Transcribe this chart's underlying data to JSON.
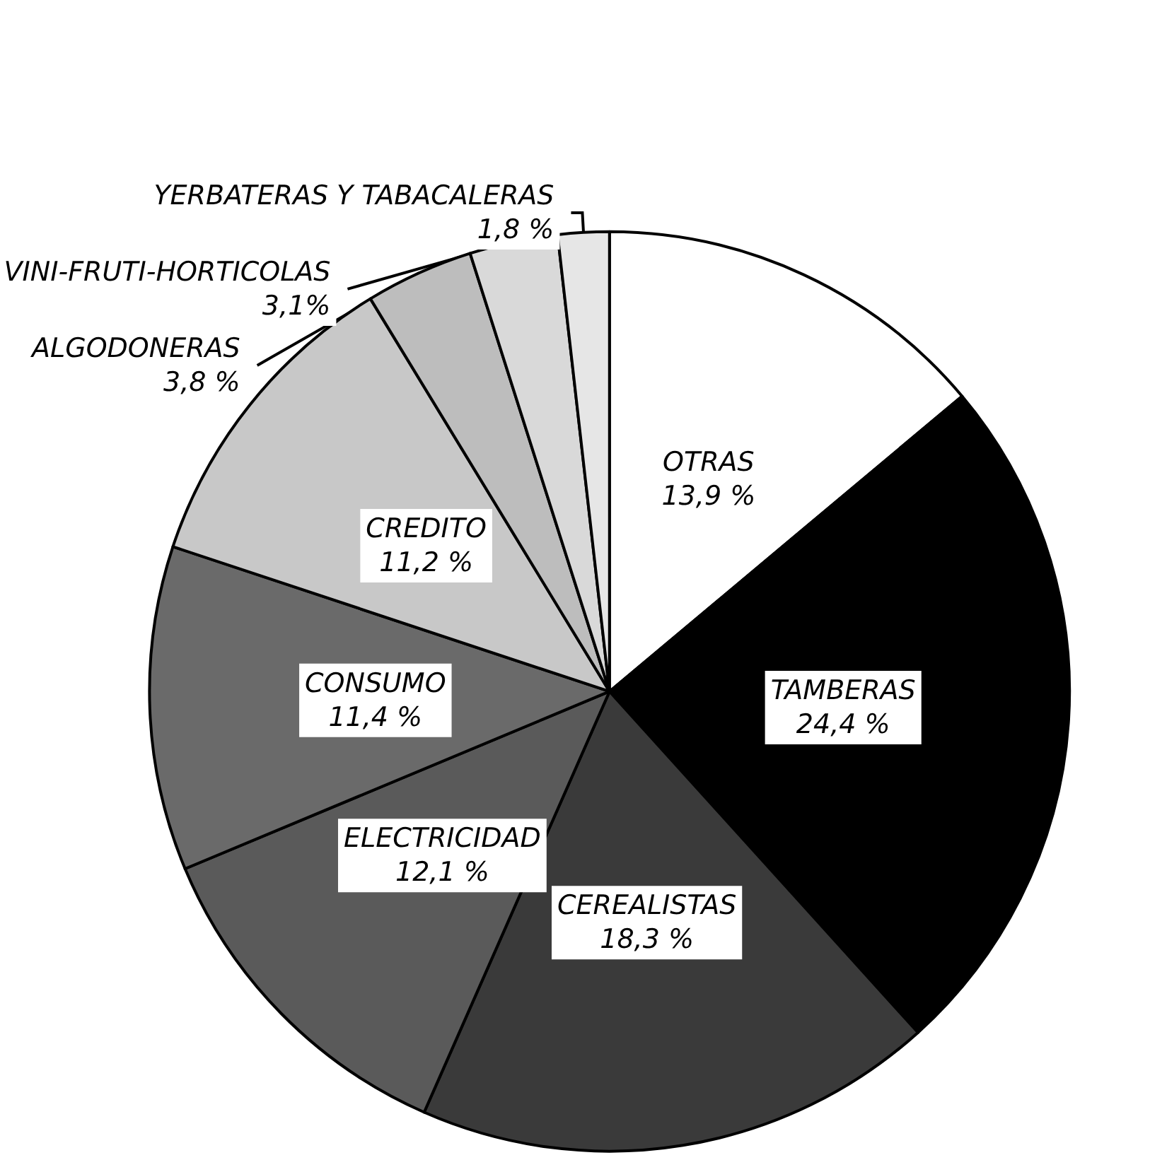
{
  "chart_data": {
    "type": "pie",
    "categories": [
      "OTRAS",
      "TAMBERAS",
      "CEREALISTAS",
      "ELECTRICIDAD",
      "CONSUMO",
      "CREDITO",
      "ALGODONERAS",
      "VINI-FRUTI-HORTICOLAS",
      "YERBATERAS Y TABACALERAS"
    ],
    "values": [
      13.9,
      24.4,
      18.3,
      12.1,
      11.4,
      11.2,
      3.8,
      3.1,
      1.8
    ],
    "value_labels": [
      "13,9 %",
      "24,4 %",
      "18,3 %",
      "12,1 %",
      "11,4 %",
      "11,2 %",
      "3,8 %",
      "3,1%",
      "1,8 %"
    ],
    "colors": [
      "#ffffff",
      "#000000",
      "#3a3a3a",
      "#5a5a5a",
      "#6a6a6a",
      "#c8c8c8",
      "#bdbdbd",
      "#d9d9d9",
      "#e6e6e6"
    ]
  }
}
